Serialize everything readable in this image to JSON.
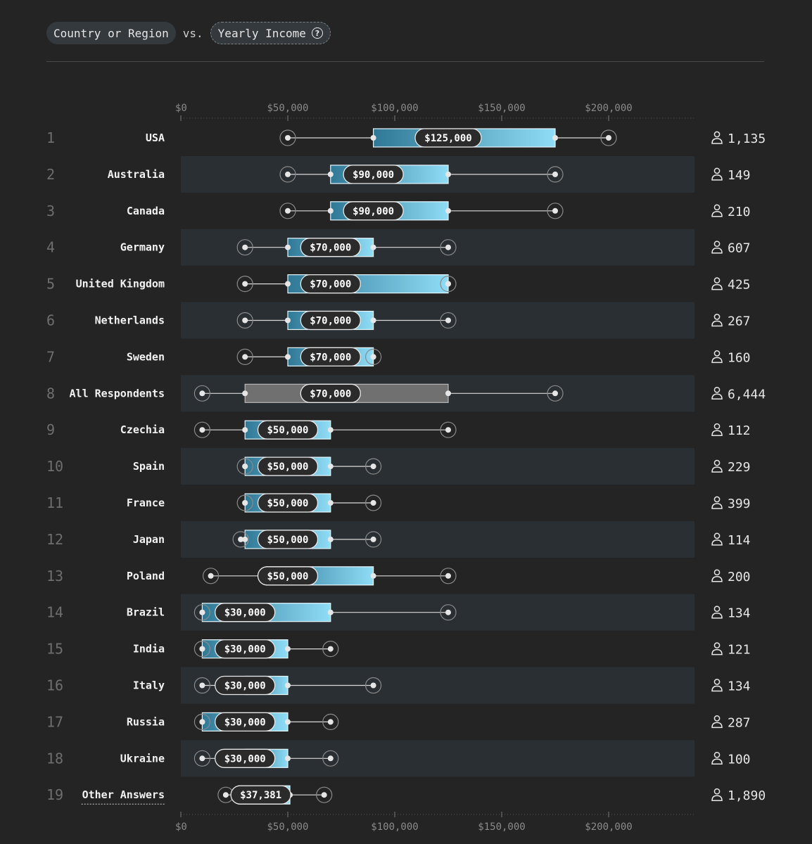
{
  "header": {
    "group_by": "Country or Region",
    "vs": "vs.",
    "metric": "Yearly Income",
    "help": "?"
  },
  "colors": {
    "background": "#242424",
    "stripe": "#2a2f33",
    "box_start": "#2f7896",
    "box_end": "#8fdcf6",
    "neutral_box": "#707070",
    "whisker": "#d9d9d9",
    "rank_text": "#6e6e6e",
    "axis_text": "#8a8a8a"
  },
  "chart_data": {
    "type": "box",
    "x_ticks": [
      {
        "value": 0,
        "label": "$0"
      },
      {
        "value": 50000,
        "label": "$50,000"
      },
      {
        "value": 100000,
        "label": "$100,000"
      },
      {
        "value": 150000,
        "label": "$150,000"
      },
      {
        "value": 200000,
        "label": "$200,000"
      }
    ],
    "xlim": [
      0,
      240000
    ],
    "rows": [
      {
        "rank": "1",
        "name": "USA",
        "min": 50000,
        "q1": 90000,
        "median": 125000,
        "q3": 175000,
        "max": 200000,
        "label": "$125,000",
        "count": "1,135"
      },
      {
        "rank": "2",
        "name": "Australia",
        "min": 50000,
        "q1": 70000,
        "median": 90000,
        "q3": 125000,
        "max": 175000,
        "label": "$90,000",
        "count": "149"
      },
      {
        "rank": "3",
        "name": "Canada",
        "min": 50000,
        "q1": 70000,
        "median": 90000,
        "q3": 125000,
        "max": 175000,
        "label": "$90,000",
        "count": "210"
      },
      {
        "rank": "4",
        "name": "Germany",
        "min": 30000,
        "q1": 50000,
        "median": 70000,
        "q3": 90000,
        "max": 125000,
        "label": "$70,000",
        "count": "607"
      },
      {
        "rank": "5",
        "name": "United Kingdom",
        "min": 30000,
        "q1": 50000,
        "median": 70000,
        "q3": 125000,
        "max": 125000,
        "label": "$70,000",
        "count": "425"
      },
      {
        "rank": "6",
        "name": "Netherlands",
        "min": 30000,
        "q1": 50000,
        "median": 70000,
        "q3": 90000,
        "max": 125000,
        "label": "$70,000",
        "count": "267"
      },
      {
        "rank": "7",
        "name": "Sweden",
        "min": 30000,
        "q1": 50000,
        "median": 70000,
        "q3": 90000,
        "max": 90000,
        "label": "$70,000",
        "count": "160"
      },
      {
        "rank": "8",
        "name": "All Respondents",
        "min": 10000,
        "q1": 30000,
        "median": 70000,
        "q3": 125000,
        "max": 175000,
        "label": "$70,000",
        "count": "6,444",
        "neutral": true
      },
      {
        "rank": "9",
        "name": "Czechia",
        "min": 10000,
        "q1": 30000,
        "median": 50000,
        "q3": 70000,
        "max": 125000,
        "label": "$50,000",
        "count": "112"
      },
      {
        "rank": "10",
        "name": "Spain",
        "min": 30000,
        "q1": 30000,
        "median": 50000,
        "q3": 70000,
        "max": 90000,
        "label": "$50,000",
        "count": "229"
      },
      {
        "rank": "11",
        "name": "France",
        "min": 30000,
        "q1": 30000,
        "median": 50000,
        "q3": 70000,
        "max": 90000,
        "label": "$50,000",
        "count": "399"
      },
      {
        "rank": "12",
        "name": "Japan",
        "min": 28000,
        "q1": 30000,
        "median": 50000,
        "q3": 70000,
        "max": 90000,
        "label": "$50,000",
        "count": "114"
      },
      {
        "rank": "13",
        "name": "Poland",
        "min": 14000,
        "q1": 40000,
        "median": 50000,
        "q3": 90000,
        "max": 125000,
        "label": "$50,000",
        "count": "200"
      },
      {
        "rank": "14",
        "name": "Brazil",
        "min": 10000,
        "q1": 10000,
        "median": 30000,
        "q3": 70000,
        "max": 125000,
        "label": "$30,000",
        "count": "134"
      },
      {
        "rank": "15",
        "name": "India",
        "min": 10000,
        "q1": 10000,
        "median": 30000,
        "q3": 50000,
        "max": 70000,
        "label": "$30,000",
        "count": "121"
      },
      {
        "rank": "16",
        "name": "Italy",
        "min": 10000,
        "q1": 30000,
        "median": 30000,
        "q3": 50000,
        "max": 90000,
        "label": "$30,000",
        "count": "134"
      },
      {
        "rank": "17",
        "name": "Russia",
        "min": 10000,
        "q1": 10000,
        "median": 30000,
        "q3": 50000,
        "max": 70000,
        "label": "$30,000",
        "count": "287"
      },
      {
        "rank": "18",
        "name": "Ukraine",
        "min": 10000,
        "q1": 30000,
        "median": 30000,
        "q3": 50000,
        "max": 70000,
        "label": "$30,000",
        "count": "100"
      },
      {
        "rank": "19",
        "name": "Other Answers",
        "min": 21000,
        "q1": 27000,
        "median": 37381,
        "q3": 51000,
        "max": 67000,
        "label": "$37,381",
        "count": "1,890",
        "link": true
      }
    ]
  }
}
